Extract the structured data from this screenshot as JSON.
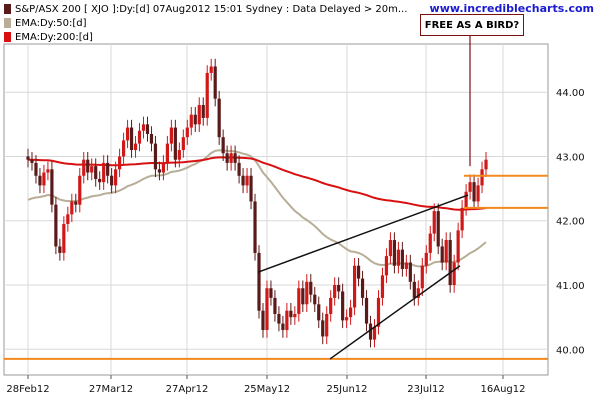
{
  "header": {
    "title": "S&P/ASX 200 [ XJO ]:Dy:[d]  07Aug2012 15:01 Sydney : Data Delayed > 20m...",
    "site": "www.incrediblecharts.com"
  },
  "legend": [
    {
      "label": "S&P/ASX 200 [ XJO ]:Dy:[d]  07Aug2012 15:01 Sydney : Data Delayed > 20m...",
      "color": "#5a1a1a"
    },
    {
      "label": "EMA:Dy:50:[d]",
      "color": "#b8ae98"
    },
    {
      "label": "EMA:Dy:200:[d]",
      "color": "#d81010"
    }
  ],
  "annotation": {
    "text": "FREE AS A BIRD?"
  },
  "colors": {
    "up": "#d01818",
    "down": "#5a1a1a",
    "ema50": "#b8ae98",
    "ema200": "#d81010",
    "support": "#f28a1e",
    "trend": "#111111",
    "grid": "#d8d8d8"
  },
  "chart_data": {
    "type": "candlestick",
    "title": "S&P/ASX 200 [ XJO ]:Dy:[d]",
    "xlabel": "",
    "ylabel": "",
    "x_ticks": [
      "28Feb12",
      "27Mar12",
      "27Apr12",
      "25May12",
      "25Jun12",
      "23Jul12",
      "16Aug12"
    ],
    "y_ticks": [
      "40.00",
      "41.00",
      "42.00",
      "43.00",
      "44.00"
    ],
    "ylim": [
      39.6,
      44.75
    ],
    "grid": true,
    "legend_position": "top-left",
    "close": [
      42.95,
      42.9,
      42.7,
      42.55,
      42.75,
      42.8,
      42.25,
      41.6,
      41.5,
      41.95,
      42.1,
      42.3,
      42.25,
      42.7,
      42.95,
      42.75,
      42.85,
      42.65,
      42.6,
      42.9,
      42.7,
      42.55,
      42.8,
      43.0,
      43.25,
      43.45,
      43.1,
      43.2,
      43.4,
      43.5,
      43.35,
      43.2,
      42.8,
      42.75,
      42.9,
      43.2,
      43.45,
      42.95,
      43.1,
      43.3,
      43.45,
      43.65,
      43.5,
      43.8,
      43.6,
      44.3,
      44.4,
      43.9,
      43.3,
      43.05,
      42.9,
      43.05,
      42.9,
      42.7,
      42.55,
      42.7,
      42.3,
      41.5,
      40.6,
      40.3,
      40.95,
      40.8,
      40.55,
      40.4,
      40.3,
      40.6,
      40.5,
      40.55,
      40.95,
      40.7,
      41.05,
      40.85,
      40.7,
      40.45,
      40.2,
      40.55,
      40.8,
      41.0,
      40.9,
      40.45,
      40.5,
      40.65,
      41.3,
      41.1,
      40.8,
      40.4,
      40.15,
      40.35,
      40.8,
      41.15,
      41.45,
      41.7,
      41.3,
      41.55,
      41.25,
      41.35,
      41.05,
      40.8,
      40.95,
      41.3,
      41.5,
      41.8,
      42.15,
      41.6,
      41.35,
      41.7,
      41.0,
      41.35,
      41.85,
      42.2,
      42.45,
      42.6,
      42.3,
      42.55,
      42.8,
      42.95
    ]
  }
}
